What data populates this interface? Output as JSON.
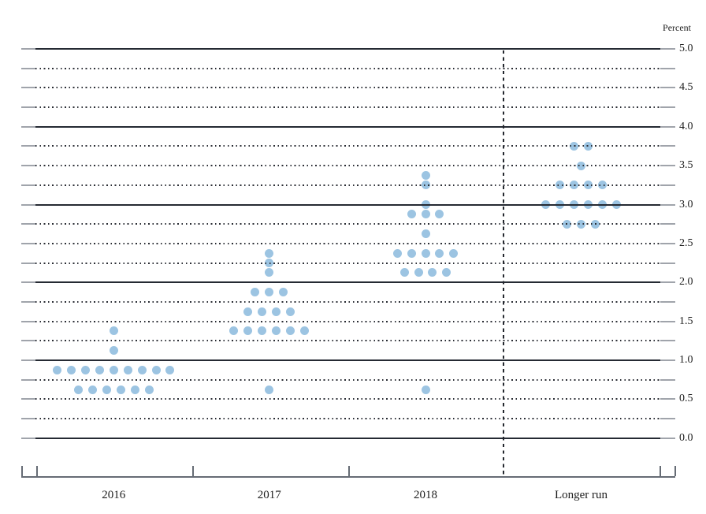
{
  "chart_data": {
    "type": "scatter",
    "subtype": "fomc-dot-plot",
    "title": "",
    "ylabel": "Percent",
    "xlabel": "",
    "ylim": [
      0.0,
      5.0
    ],
    "grid": "on",
    "gridline_step": 0.25,
    "solid_gridlines_at": "whole percents",
    "y_label_step": 0.5,
    "y_tick_labels": [
      "5.0",
      "4.5",
      "4.0",
      "3.5",
      "3.0",
      "2.5",
      "2.0",
      "1.5",
      "1.0",
      "0.5",
      "0.0"
    ],
    "y_tick_values": [
      5.0,
      4.5,
      4.0,
      3.5,
      3.0,
      2.5,
      2.0,
      1.5,
      1.0,
      0.5,
      0.0
    ],
    "legend_position": "none",
    "categories": [
      "2016",
      "2017",
      "2018",
      "Longer run"
    ],
    "separator_before_category": "Longer run",
    "dot_color": "#9cc4e2",
    "series": [
      {
        "category": "2016",
        "dots": [
          {
            "value": 1.375,
            "count": 1
          },
          {
            "value": 1.125,
            "count": 1
          },
          {
            "value": 0.875,
            "count": 9
          },
          {
            "value": 0.625,
            "count": 6
          }
        ]
      },
      {
        "category": "2017",
        "dots": [
          {
            "value": 2.375,
            "count": 1
          },
          {
            "value": 2.25,
            "count": 1
          },
          {
            "value": 2.125,
            "count": 1
          },
          {
            "value": 1.875,
            "count": 3
          },
          {
            "value": 1.625,
            "count": 4
          },
          {
            "value": 1.375,
            "count": 6
          },
          {
            "value": 0.625,
            "count": 1
          }
        ]
      },
      {
        "category": "2018",
        "dots": [
          {
            "value": 3.375,
            "count": 1
          },
          {
            "value": 3.25,
            "count": 1
          },
          {
            "value": 3.0,
            "count": 1
          },
          {
            "value": 2.875,
            "count": 3
          },
          {
            "value": 2.625,
            "count": 1
          },
          {
            "value": 2.375,
            "count": 5
          },
          {
            "value": 2.125,
            "count": 4
          },
          {
            "value": 0.625,
            "count": 1
          }
        ]
      },
      {
        "category": "Longer run",
        "dots": [
          {
            "value": 3.75,
            "count": 2
          },
          {
            "value": 3.5,
            "count": 1
          },
          {
            "value": 3.25,
            "count": 4
          },
          {
            "value": 3.0,
            "count": 6
          },
          {
            "value": 2.75,
            "count": 3
          }
        ]
      }
    ]
  }
}
